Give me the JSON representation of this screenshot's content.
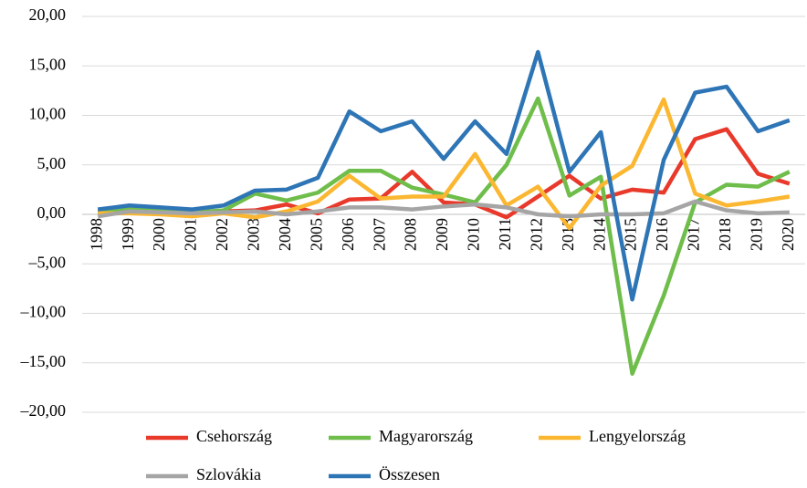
{
  "chart_data": {
    "type": "line",
    "categories": [
      "1998",
      "1999",
      "2000",
      "2001",
      "2002",
      "2003",
      "2004",
      "2005",
      "2006",
      "2007",
      "2008",
      "2009",
      "2010",
      "2011",
      "2012",
      "2013",
      "2014",
      "2015",
      "2016",
      "2017",
      "2018",
      "2019",
      "2020"
    ],
    "series": [
      {
        "name": "Csehország",
        "color": "#e8392b",
        "values": [
          0.3,
          0.4,
          0.2,
          0.1,
          0.3,
          0.4,
          1.0,
          0.1,
          1.5,
          1.6,
          4.3,
          1.2,
          1.0,
          -0.3,
          1.8,
          3.9,
          1.6,
          2.5,
          2.2,
          7.6,
          8.6,
          4.1,
          3.1
        ]
      },
      {
        "name": "Magyarország",
        "color": "#6fbd4a",
        "values": [
          0.2,
          0.5,
          0.4,
          0.2,
          0.4,
          2.1,
          1.4,
          2.2,
          4.4,
          4.4,
          2.7,
          2.0,
          1.2,
          5.0,
          11.7,
          1.9,
          3.8,
          -16.1,
          -8.2,
          1.2,
          3.0,
          2.8,
          4.3
        ]
      },
      {
        "name": "Lengyelország",
        "color": "#fbb731",
        "values": [
          0.1,
          0.1,
          0.0,
          -0.2,
          0.1,
          -0.3,
          0.3,
          1.3,
          3.9,
          1.6,
          1.8,
          1.8,
          6.1,
          0.9,
          2.8,
          -1.4,
          2.9,
          4.9,
          11.6,
          2.1,
          0.9,
          1.3,
          1.8
        ]
      },
      {
        "name": "Szlovákia",
        "color": "#a5a5a5",
        "values": [
          -0.2,
          0.3,
          0.2,
          0.1,
          0.2,
          0.3,
          0.0,
          0.3,
          0.7,
          0.7,
          0.5,
          0.8,
          1.0,
          0.7,
          0.0,
          -0.2,
          0.0,
          0.0,
          0.1,
          1.3,
          0.4,
          0.1,
          0.2
        ]
      },
      {
        "name": "Összesen",
        "color": "#2e75b6",
        "values": [
          0.5,
          0.9,
          0.7,
          0.5,
          0.9,
          2.4,
          2.5,
          3.7,
          10.4,
          8.4,
          9.4,
          5.6,
          9.4,
          6.1,
          16.4,
          4.3,
          8.3,
          -8.6,
          5.5,
          12.3,
          12.9,
          8.4,
          9.5
        ]
      }
    ],
    "ylim": [
      -20,
      20
    ],
    "yticks": [
      {
        "value": -20,
        "label": "–20,00"
      },
      {
        "value": -15,
        "label": "–15,00"
      },
      {
        "value": -10,
        "label": "–10,00"
      },
      {
        "value": -5,
        "label": "–5,00"
      },
      {
        "value": 0,
        "label": "0,00"
      },
      {
        "value": 5,
        "label": "5,00"
      },
      {
        "value": 10,
        "label": "10,00"
      },
      {
        "value": 15,
        "label": "15,00"
      },
      {
        "value": 20,
        "label": "20,00"
      }
    ],
    "grid": true
  }
}
